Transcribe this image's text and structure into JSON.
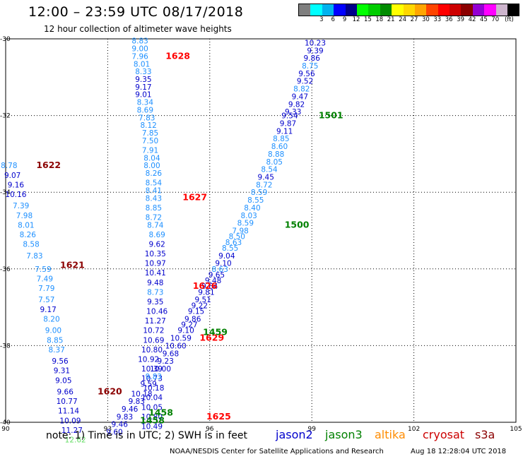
{
  "title": "12:00 – 23:59 UTC 08/17/2018",
  "subtitle": "12 hour collection of altimeter wave heights",
  "legend": {
    "unit": "(ft)",
    "colors": [
      "#7f7f7f",
      "#00ffff",
      "#00b2ee",
      "#0000ff",
      "#00008b",
      "#00ff00",
      "#00cd00",
      "#008b00",
      "#ffff00",
      "#ffd700",
      "#ffa500",
      "#ff4500",
      "#ff0000",
      "#cd0000",
      "#8b0000",
      "#9400d3",
      "#ff00ff",
      "#cdb5cd",
      "#000000"
    ],
    "labels": [
      "3",
      "6",
      "9",
      "12",
      "15",
      "18",
      "21",
      "24",
      "27",
      "30",
      "33",
      "36",
      "39",
      "42",
      "45",
      "70"
    ]
  },
  "axes": {
    "lat_ticks": [
      "-30",
      "-32",
      "-34",
      "-36",
      "-38",
      "-40"
    ],
    "lon_ticks": [
      "90",
      "93",
      "96",
      "99",
      "102",
      "105"
    ],
    "lat_range": [
      -40,
      -30
    ],
    "lon_range": [
      90,
      105
    ]
  },
  "satellite_colors": {
    "jason2": "#0000cc",
    "jason3": "#008000",
    "altika": "#ff8c00",
    "cryosat": "#cc0000",
    "s3a": "#8b0000",
    "lightblue": "#1e90ff",
    "lightgreen": "#66dd66"
  },
  "passes": [
    {
      "label": "1628",
      "color": "#ff0000",
      "lon": 94.7,
      "lat": -30.45
    },
    {
      "label": "1627",
      "color": "#ff0000",
      "lon": 95.2,
      "lat": -34.13
    },
    {
      "label": "1626",
      "color": "#ff0000",
      "lon": 95.5,
      "lat": -36.45
    },
    {
      "label": "1629",
      "color": "#ff0000",
      "lon": 95.7,
      "lat": -37.8
    },
    {
      "label": "1625",
      "color": "#ff0000",
      "lon": 95.9,
      "lat": -39.85
    },
    {
      "label": "1622",
      "color": "#8b0000",
      "lon": 90.9,
      "lat": -33.3
    },
    {
      "label": "1621",
      "color": "#8b0000",
      "lon": 91.6,
      "lat": -35.9
    },
    {
      "label": "1620",
      "color": "#8b0000",
      "lon": 92.7,
      "lat": -39.2
    },
    {
      "label": "1501",
      "color": "#008000",
      "lon": 99.2,
      "lat": -32.0
    },
    {
      "label": "1500",
      "color": "#008000",
      "lon": 98.2,
      "lat": -34.85
    },
    {
      "label": "1459",
      "color": "#008000",
      "lon": 95.8,
      "lat": -37.65
    },
    {
      "label": "1458",
      "color": "#008000",
      "lon": 94.2,
      "lat": -39.75
    },
    {
      "label": "1458",
      "color": "#008000",
      "lon": 93.95,
      "lat": -39.95
    }
  ],
  "tracks": [
    {
      "name": "A",
      "color": "#0000cc",
      "points": [
        {
          "lon": 93.95,
          "lat": -30.05,
          "v": "8.83",
          "c": "#1e90ff"
        },
        {
          "lon": 93.95,
          "lat": -30.25,
          "v": "9.00",
          "c": "#1e90ff"
        },
        {
          "lon": 93.95,
          "lat": -30.45,
          "v": "7.96",
          "c": "#1e90ff"
        },
        {
          "lon": 94.0,
          "lat": -30.65,
          "v": "8.01",
          "c": "#1e90ff"
        },
        {
          "lon": 94.05,
          "lat": -30.85,
          "v": "8.33",
          "c": "#1e90ff"
        },
        {
          "lon": 94.05,
          "lat": -31.05,
          "v": "9.35",
          "c": "#0000cc"
        },
        {
          "lon": 94.05,
          "lat": -31.25,
          "v": "9.17",
          "c": "#0000cc"
        },
        {
          "lon": 94.05,
          "lat": -31.45,
          "v": "9.01",
          "c": "#0000cc"
        },
        {
          "lon": 94.1,
          "lat": -31.65,
          "v": "8.34",
          "c": "#1e90ff"
        },
        {
          "lon": 94.1,
          "lat": -31.85,
          "v": "8.69",
          "c": "#1e90ff"
        },
        {
          "lon": 94.15,
          "lat": -32.05,
          "v": "7.83",
          "c": "#1e90ff"
        },
        {
          "lon": 94.2,
          "lat": -32.25,
          "v": "8.12",
          "c": "#1e90ff"
        },
        {
          "lon": 94.25,
          "lat": -32.45,
          "v": "7.85",
          "c": "#1e90ff"
        },
        {
          "lon": 94.25,
          "lat": -32.65,
          "v": "7.50",
          "c": "#1e90ff"
        },
        {
          "lon": 94.25,
          "lat": -32.9,
          "v": "7.91",
          "c": "#1e90ff"
        },
        {
          "lon": 94.3,
          "lat": -33.1,
          "v": "8.04",
          "c": "#1e90ff"
        },
        {
          "lon": 94.3,
          "lat": -33.3,
          "v": "8.00",
          "c": "#1e90ff"
        },
        {
          "lon": 94.35,
          "lat": -33.5,
          "v": "8.26",
          "c": "#1e90ff"
        },
        {
          "lon": 94.35,
          "lat": -33.75,
          "v": "8.54",
          "c": "#1e90ff"
        },
        {
          "lon": 94.35,
          "lat": -33.95,
          "v": "8.41",
          "c": "#1e90ff"
        },
        {
          "lon": 94.35,
          "lat": -34.15,
          "v": "8.43",
          "c": "#1e90ff"
        },
        {
          "lon": 94.35,
          "lat": -34.4,
          "v": "8.85",
          "c": "#1e90ff"
        },
        {
          "lon": 94.35,
          "lat": -34.65,
          "v": "8.72",
          "c": "#1e90ff"
        },
        {
          "lon": 94.4,
          "lat": -34.85,
          "v": "8.74",
          "c": "#1e90ff"
        },
        {
          "lon": 94.45,
          "lat": -35.1,
          "v": "8.69",
          "c": "#1e90ff"
        },
        {
          "lon": 94.45,
          "lat": -35.35,
          "v": "9.62",
          "c": "#0000cc"
        },
        {
          "lon": 94.4,
          "lat": -35.6,
          "v": "10.35",
          "c": "#0000cc"
        },
        {
          "lon": 94.4,
          "lat": -35.85,
          "v": "10.97",
          "c": "#0000cc"
        },
        {
          "lon": 94.4,
          "lat": -36.1,
          "v": "10.41",
          "c": "#0000cc"
        },
        {
          "lon": 94.4,
          "lat": -36.35,
          "v": "9.48",
          "c": "#0000cc"
        },
        {
          "lon": 94.4,
          "lat": -36.6,
          "v": "8.73",
          "c": "#1e90ff"
        },
        {
          "lon": 94.4,
          "lat": -36.85,
          "v": "9.35",
          "c": "#0000cc"
        },
        {
          "lon": 94.45,
          "lat": -37.1,
          "v": "10.46",
          "c": "#0000cc"
        },
        {
          "lon": 94.4,
          "lat": -37.35,
          "v": "11.27",
          "c": "#0000cc"
        },
        {
          "lon": 94.35,
          "lat": -37.6,
          "v": "10.72",
          "c": "#0000cc"
        },
        {
          "lon": 94.35,
          "lat": -37.85,
          "v": "10.69",
          "c": "#0000cc"
        },
        {
          "lon": 94.3,
          "lat": -38.1,
          "v": "10.80",
          "c": "#0000cc"
        },
        {
          "lon": 94.2,
          "lat": -38.35,
          "v": "10.92",
          "c": "#0000cc"
        },
        {
          "lon": 94.3,
          "lat": -38.6,
          "v": "10.39",
          "c": "#0000cc"
        },
        {
          "lon": 94.3,
          "lat": -38.85,
          "v": "10.73",
          "c": "#0000cc"
        },
        {
          "lon": 94.35,
          "lat": -39.1,
          "v": "10.18",
          "c": "#0000cc"
        },
        {
          "lon": 94.3,
          "lat": -39.35,
          "v": "10.04",
          "c": "#0000cc"
        },
        {
          "lon": 94.3,
          "lat": -39.6,
          "v": "10.05",
          "c": "#0000cc"
        },
        {
          "lon": 94.3,
          "lat": -39.85,
          "v": "10.80",
          "c": "#0000cc"
        },
        {
          "lon": 94.3,
          "lat": -40.1,
          "v": "10.49",
          "c": "#0000cc"
        }
      ]
    },
    {
      "name": "B",
      "color": "#0000cc",
      "points": [
        {
          "lon": 90.1,
          "lat": -33.3,
          "v": "8.78",
          "c": "#1e90ff"
        },
        {
          "lon": 90.2,
          "lat": -33.55,
          "v": "9.07",
          "c": "#0000cc"
        },
        {
          "lon": 90.3,
          "lat": -33.8,
          "v": "9.16",
          "c": "#0000cc"
        },
        {
          "lon": 90.3,
          "lat": -34.05,
          "v": "10.16",
          "c": "#0000cc"
        },
        {
          "lon": 90.45,
          "lat": -34.35,
          "v": "7.39",
          "c": "#1e90ff"
        },
        {
          "lon": 90.55,
          "lat": -34.6,
          "v": "7.98",
          "c": "#1e90ff"
        },
        {
          "lon": 90.6,
          "lat": -34.85,
          "v": "8.01",
          "c": "#1e90ff"
        },
        {
          "lon": 90.65,
          "lat": -35.1,
          "v": "8.26",
          "c": "#1e90ff"
        },
        {
          "lon": 90.75,
          "lat": -35.35,
          "v": "8.58",
          "c": "#1e90ff"
        },
        {
          "lon": 90.85,
          "lat": -35.65,
          "v": "7.83",
          "c": "#1e90ff"
        },
        {
          "lon": 91.1,
          "lat": -36.0,
          "v": "7.59",
          "c": "#1e90ff"
        },
        {
          "lon": 91.15,
          "lat": -36.25,
          "v": "7.49",
          "c": "#1e90ff"
        },
        {
          "lon": 91.2,
          "lat": -36.5,
          "v": "7.79",
          "c": "#1e90ff"
        },
        {
          "lon": 91.2,
          "lat": -36.8,
          "v": "7.57",
          "c": "#1e90ff"
        },
        {
          "lon": 91.25,
          "lat": -37.05,
          "v": "9.17",
          "c": "#0000cc"
        },
        {
          "lon": 91.35,
          "lat": -37.3,
          "v": "8.20",
          "c": "#1e90ff"
        },
        {
          "lon": 91.4,
          "lat": -37.6,
          "v": "9.00",
          "c": "#1e90ff"
        },
        {
          "lon": 91.45,
          "lat": -37.85,
          "v": "8.85",
          "c": "#1e90ff"
        },
        {
          "lon": 91.5,
          "lat": -38.1,
          "v": "8.37",
          "c": "#1e90ff"
        },
        {
          "lon": 91.6,
          "lat": -38.4,
          "v": "9.56",
          "c": "#0000cc"
        },
        {
          "lon": 91.65,
          "lat": -38.65,
          "v": "9.31",
          "c": "#0000cc"
        },
        {
          "lon": 91.7,
          "lat": -38.9,
          "v": "9.05",
          "c": "#0000cc"
        },
        {
          "lon": 91.75,
          "lat": -39.2,
          "v": "9.66",
          "c": "#0000cc"
        },
        {
          "lon": 91.8,
          "lat": -39.45,
          "v": "10.77",
          "c": "#0000cc"
        },
        {
          "lon": 91.85,
          "lat": -39.7,
          "v": "11.14",
          "c": "#0000cc"
        },
        {
          "lon": 91.9,
          "lat": -39.95,
          "v": "10.09",
          "c": "#0000cc"
        },
        {
          "lon": 91.95,
          "lat": -40.2,
          "v": "11.27",
          "c": "#0000cc"
        },
        {
          "lon": 92.05,
          "lat": -40.45,
          "v": "12.62",
          "c": "#66dd66"
        }
      ]
    },
    {
      "name": "C",
      "color": "#0000cc",
      "points": [
        {
          "lon": 99.1,
          "lat": -30.1,
          "v": "10.23",
          "c": "#0000cc"
        },
        {
          "lon": 99.1,
          "lat": -30.3,
          "v": "9.39",
          "c": "#0000cc"
        },
        {
          "lon": 99.0,
          "lat": -30.5,
          "v": "9.86",
          "c": "#0000cc"
        },
        {
          "lon": 98.95,
          "lat": -30.7,
          "v": "8.75",
          "c": "#1e90ff"
        },
        {
          "lon": 98.85,
          "lat": -30.9,
          "v": "9.56",
          "c": "#0000cc"
        },
        {
          "lon": 98.8,
          "lat": -31.1,
          "v": "9.52",
          "c": "#0000cc"
        },
        {
          "lon": 98.7,
          "lat": -31.3,
          "v": "8.82",
          "c": "#1e90ff"
        },
        {
          "lon": 98.65,
          "lat": -31.5,
          "v": "9.47",
          "c": "#0000cc"
        },
        {
          "lon": 98.55,
          "lat": -31.7,
          "v": "9.82",
          "c": "#0000cc"
        },
        {
          "lon": 98.45,
          "lat": -31.9,
          "v": "9.33",
          "c": "#0000cc"
        },
        {
          "lon": 98.35,
          "lat": -32.0,
          "v": "9.54",
          "c": "#0000cc"
        },
        {
          "lon": 98.3,
          "lat": -32.2,
          "v": "9.87",
          "c": "#0000cc"
        },
        {
          "lon": 98.2,
          "lat": -32.4,
          "v": "9.11",
          "c": "#0000cc"
        },
        {
          "lon": 98.1,
          "lat": -32.6,
          "v": "8.85",
          "c": "#1e90ff"
        },
        {
          "lon": 98.05,
          "lat": -32.8,
          "v": "8.60",
          "c": "#1e90ff"
        },
        {
          "lon": 97.95,
          "lat": -33.0,
          "v": "8.88",
          "c": "#1e90ff"
        },
        {
          "lon": 97.9,
          "lat": -33.2,
          "v": "8.05",
          "c": "#1e90ff"
        },
        {
          "lon": 97.75,
          "lat": -33.4,
          "v": "8.54",
          "c": "#1e90ff"
        },
        {
          "lon": 97.65,
          "lat": -33.6,
          "v": "9.45",
          "c": "#0000cc"
        },
        {
          "lon": 97.6,
          "lat": -33.8,
          "v": "8.72",
          "c": "#1e90ff"
        },
        {
          "lon": 97.45,
          "lat": -34.0,
          "v": "8.59",
          "c": "#1e90ff"
        },
        {
          "lon": 97.35,
          "lat": -34.2,
          "v": "8.55",
          "c": "#1e90ff"
        },
        {
          "lon": 97.25,
          "lat": -34.4,
          "v": "8.40",
          "c": "#1e90ff"
        },
        {
          "lon": 97.15,
          "lat": -34.6,
          "v": "8.03",
          "c": "#1e90ff"
        },
        {
          "lon": 97.05,
          "lat": -34.8,
          "v": "8.59",
          "c": "#1e90ff"
        },
        {
          "lon": 96.9,
          "lat": -35.0,
          "v": "7.98",
          "c": "#1e90ff"
        },
        {
          "lon": 96.8,
          "lat": -35.15,
          "v": "8.50",
          "c": "#1e90ff"
        },
        {
          "lon": 96.7,
          "lat": -35.3,
          "v": "8.63",
          "c": "#1e90ff"
        },
        {
          "lon": 96.6,
          "lat": -35.45,
          "v": "8.55",
          "c": "#1e90ff"
        },
        {
          "lon": 96.5,
          "lat": -35.65,
          "v": "9.04",
          "c": "#0000cc"
        },
        {
          "lon": 96.4,
          "lat": -35.85,
          "v": "9.10",
          "c": "#0000cc"
        },
        {
          "lon": 96.3,
          "lat": -36.0,
          "v": "8.63",
          "c": "#1e90ff"
        },
        {
          "lon": 96.2,
          "lat": -36.15,
          "v": "9.65",
          "c": "#0000cc"
        },
        {
          "lon": 96.1,
          "lat": -36.3,
          "v": "9.48",
          "c": "#0000cc"
        },
        {
          "lon": 96.0,
          "lat": -36.45,
          "v": "9.64",
          "c": "#0000cc"
        },
        {
          "lon": 95.9,
          "lat": -36.6,
          "v": "9.81",
          "c": "#0000cc"
        },
        {
          "lon": 95.8,
          "lat": -36.8,
          "v": "9.51",
          "c": "#0000cc"
        },
        {
          "lon": 95.7,
          "lat": -36.95,
          "v": "9.22",
          "c": "#0000cc"
        },
        {
          "lon": 95.6,
          "lat": -37.1,
          "v": "9.15",
          "c": "#0000cc"
        },
        {
          "lon": 95.5,
          "lat": -37.3,
          "v": "9.86",
          "c": "#0000cc"
        },
        {
          "lon": 95.4,
          "lat": -37.45,
          "v": "9.27",
          "c": "#0000cc"
        },
        {
          "lon": 95.3,
          "lat": -37.6,
          "v": "9.10",
          "c": "#0000cc"
        },
        {
          "lon": 95.15,
          "lat": -37.8,
          "v": "10.59",
          "c": "#0000cc"
        },
        {
          "lon": 95.0,
          "lat": -38.0,
          "v": "10.60",
          "c": "#0000cc"
        },
        {
          "lon": 94.85,
          "lat": -38.2,
          "v": "9.68",
          "c": "#0000cc"
        },
        {
          "lon": 94.7,
          "lat": -38.4,
          "v": "9.23",
          "c": "#0000cc"
        },
        {
          "lon": 94.55,
          "lat": -38.6,
          "v": "10.00",
          "c": "#0000cc"
        },
        {
          "lon": 94.35,
          "lat": -38.8,
          "v": "9.83",
          "c": "#1e90ff"
        },
        {
          "lon": 94.2,
          "lat": -39.0,
          "v": "9.59",
          "c": "#0000cc"
        },
        {
          "lon": 94.0,
          "lat": -39.25,
          "v": "10.18",
          "c": "#0000cc"
        },
        {
          "lon": 93.85,
          "lat": -39.45,
          "v": "9.83",
          "c": "#0000cc"
        },
        {
          "lon": 93.65,
          "lat": -39.65,
          "v": "9.46",
          "c": "#0000cc"
        },
        {
          "lon": 93.5,
          "lat": -39.85,
          "v": "9.83",
          "c": "#0000cc"
        },
        {
          "lon": 93.35,
          "lat": -40.05,
          "v": "9.46",
          "c": "#0000cc"
        },
        {
          "lon": 93.2,
          "lat": -40.25,
          "v": "9.60",
          "c": "#0000cc"
        }
      ]
    }
  ],
  "note": "note: 1) Time is in UTC; 2) SWH is in feet",
  "satellites": [
    {
      "name": "jason2",
      "color": "#0000cc"
    },
    {
      "name": "jason3",
      "color": "#008000"
    },
    {
      "name": "altika",
      "color": "#ff8c00"
    },
    {
      "name": "cryosat",
      "color": "#cc0000"
    },
    {
      "name": "s3a",
      "color": "#8b0000"
    }
  ],
  "footer": {
    "org": "NOAA/NESDIS Center for Satellite Applications and Research",
    "timestamp": "Aug 18 12:28:04 UTC 2018"
  }
}
